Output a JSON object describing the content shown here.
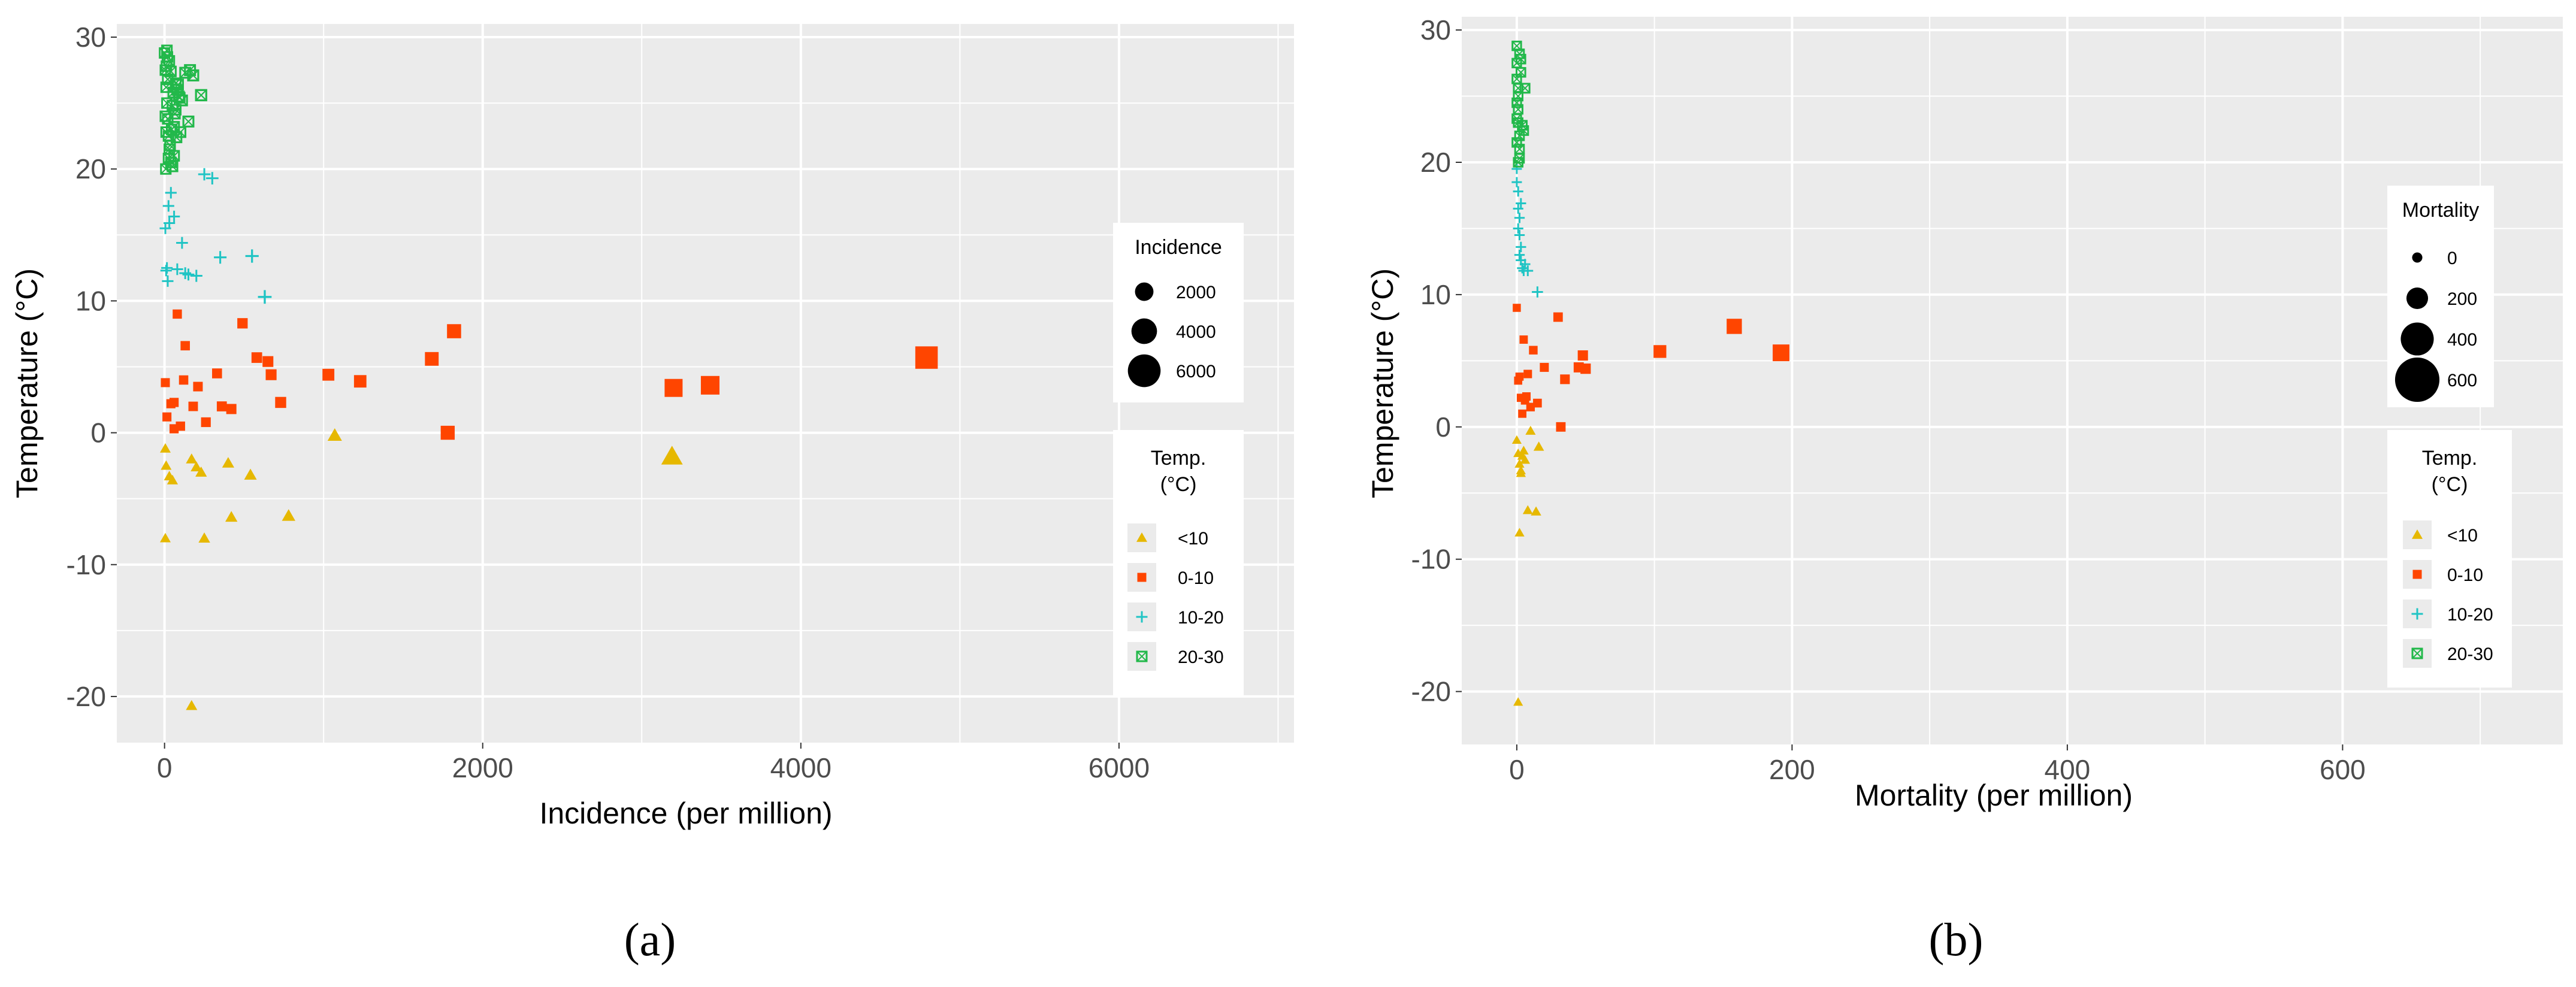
{
  "colors": {
    "panel_bg": "#ebebeb",
    "grid": "#ffffff",
    "lt10": "#E6B800",
    "t0_10": "#FF4500",
    "t10_20": "#20C4C4",
    "t20_30": "#22B84A"
  },
  "panel_labels": {
    "a": "(a)",
    "b": "(b)"
  },
  "chart_data": [
    {
      "type": "scatter",
      "id": "a",
      "title": "",
      "xlabel": "Incidence (per million)",
      "ylabel": "Temperature (°C)",
      "xlim": [
        -300,
        7100
      ],
      "ylim": [
        -23.5,
        31
      ],
      "xticks": [
        0,
        2000,
        4000,
        6000
      ],
      "xtick_labels": [
        "0",
        "2000",
        "4000",
        "6000"
      ],
      "yticks": [
        -20,
        -10,
        0,
        10,
        20,
        30
      ],
      "ytick_labels": [
        "-20",
        "-10",
        "0",
        "10",
        "20",
        "30"
      ],
      "size_legend": {
        "title": "Incidence",
        "entries": [
          {
            "label": "2000",
            "value": 2000
          },
          {
            "label": "4000",
            "value": 4000
          },
          {
            "label": "6000",
            "value": 6000
          }
        ]
      },
      "color_legend": {
        "title_line1": "Temp.",
        "title_line2": "(°C)",
        "entries": [
          {
            "label": "<10",
            "group": "lt10",
            "shape": "triangle"
          },
          {
            "label": "0-10",
            "group": "t0_10",
            "shape": "square"
          },
          {
            "label": "10-20",
            "group": "t10_20",
            "shape": "plus"
          },
          {
            "label": "20-30",
            "group": "t20_30",
            "shape": "squarecross"
          }
        ]
      },
      "series": [
        {
          "name": "<10",
          "group": "lt10",
          "shape": "triangle",
          "x": [
            5,
            10,
            30,
            50,
            170,
            200,
            230,
            250,
            400,
            420,
            540,
            780,
            1070,
            3190,
            170,
            5
          ],
          "y": [
            -1.2,
            -2.5,
            -3.3,
            -3.6,
            -2.0,
            -2.6,
            -3.0,
            -8.0,
            -2.3,
            -6.4,
            -3.2,
            -6.3,
            -0.2,
            -1.8,
            -20.7,
            -8.0
          ]
        },
        {
          "name": "0-10",
          "group": "t0_10",
          "shape": "square",
          "x": [
            5,
            15,
            40,
            60,
            80,
            100,
            130,
            180,
            210,
            260,
            330,
            360,
            420,
            490,
            580,
            650,
            670,
            730,
            1030,
            1230,
            1680,
            1780,
            1820,
            3200,
            3430,
            4790,
            60,
            120
          ],
          "y": [
            3.8,
            1.2,
            2.2,
            0.3,
            9.0,
            0.5,
            6.6,
            2.0,
            3.5,
            0.8,
            4.5,
            2.0,
            1.8,
            8.3,
            5.7,
            5.4,
            4.4,
            2.3,
            4.4,
            3.9,
            5.6,
            0.0,
            7.7,
            3.4,
            3.6,
            5.7,
            2.3,
            4.0
          ]
        },
        {
          "name": "10-20",
          "group": "t10_20",
          "shape": "plus",
          "x": [
            5,
            10,
            20,
            25,
            40,
            60,
            80,
            110,
            130,
            150,
            200,
            250,
            300,
            350,
            550,
            630,
            30,
            15
          ],
          "y": [
            15.5,
            12.3,
            11.5,
            17.2,
            18.2,
            16.4,
            12.4,
            14.4,
            12.1,
            12.0,
            11.9,
            19.6,
            19.3,
            13.3,
            13.4,
            10.3,
            15.9,
            12.5
          ]
        },
        {
          "name": "20-30",
          "group": "t20_30",
          "shape": "squarecross",
          "x": [
            0,
            5,
            10,
            15,
            20,
            25,
            30,
            40,
            50,
            60,
            70,
            80,
            90,
            100,
            110,
            130,
            150,
            160,
            180,
            230,
            5,
            10,
            20,
            30,
            40,
            50,
            60,
            70,
            15,
            25,
            35,
            45,
            55,
            65,
            75,
            85,
            95,
            8,
            12,
            18
          ],
          "y": [
            28.8,
            27.5,
            26.2,
            25.0,
            23.8,
            22.5,
            21.5,
            20.5,
            20.2,
            21.0,
            24.5,
            26.0,
            25.5,
            22.8,
            25.2,
            27.3,
            23.6,
            27.5,
            27.1,
            25.6,
            24.0,
            22.8,
            26.8,
            28.2,
            27.4,
            24.8,
            23.2,
            26.5,
            29.0,
            20.8,
            21.8,
            23.0,
            25.8,
            24.2,
            22.4,
            26.4,
            25.4,
            20.0,
            27.8,
            28.5
          ]
        }
      ]
    },
    {
      "type": "scatter",
      "id": "b",
      "title": "",
      "xlabel": "Mortality (per million)",
      "ylabel": "Temperature (°C)",
      "xlim": [
        -40,
        760
      ],
      "ylim": [
        -24,
        31
      ],
      "xticks": [
        0,
        200,
        400,
        600
      ],
      "xtick_labels": [
        "0",
        "200",
        "400",
        "600"
      ],
      "yticks": [
        -20,
        -10,
        0,
        10,
        20,
        30
      ],
      "ytick_labels": [
        "-20",
        "-10",
        "0",
        "10",
        "20",
        "30"
      ],
      "size_legend": {
        "title": "Mortality",
        "entries": [
          {
            "label": "0",
            "value": 0
          },
          {
            "label": "200",
            "value": 200
          },
          {
            "label": "400",
            "value": 400
          },
          {
            "label": "600",
            "value": 600
          }
        ]
      },
      "color_legend": {
        "title_line1": "Temp.",
        "title_line2": "(°C)",
        "entries": [
          {
            "label": "<10",
            "group": "lt10",
            "shape": "triangle"
          },
          {
            "label": "0-10",
            "group": "t0_10",
            "shape": "square"
          },
          {
            "label": "10-20",
            "group": "t10_20",
            "shape": "plus"
          },
          {
            "label": "20-30",
            "group": "t20_30",
            "shape": "squarecross"
          }
        ]
      },
      "series": [
        {
          "name": "<10",
          "group": "lt10",
          "shape": "triangle",
          "x": [
            0,
            1,
            2,
            3,
            4,
            5,
            6,
            8,
            10,
            14,
            16,
            2,
            1,
            3
          ],
          "y": [
            -1.0,
            -2.0,
            -2.8,
            -3.3,
            -2.2,
            -1.8,
            -2.5,
            -6.3,
            -0.3,
            -6.4,
            -1.5,
            -8.0,
            -20.8,
            -3.5
          ]
        },
        {
          "name": "0-10",
          "group": "t0_10",
          "shape": "square",
          "x": [
            0,
            2,
            3,
            4,
            5,
            6,
            8,
            10,
            12,
            15,
            20,
            30,
            32,
            35,
            45,
            48,
            50,
            104,
            158,
            192,
            1,
            7
          ],
          "y": [
            9.0,
            3.8,
            2.2,
            1.0,
            6.6,
            2.0,
            4.0,
            1.5,
            5.8,
            1.8,
            4.5,
            8.3,
            0.0,
            3.6,
            4.5,
            5.4,
            4.4,
            5.7,
            7.6,
            5.6,
            3.5,
            2.3
          ]
        },
        {
          "name": "10-20",
          "group": "t10_20",
          "shape": "plus",
          "x": [
            0,
            1,
            1,
            2,
            2,
            3,
            3,
            4,
            5,
            6,
            8,
            15,
            0,
            1,
            2,
            3
          ],
          "y": [
            19.5,
            17.8,
            16.5,
            15.8,
            14.5,
            13.6,
            12.6,
            12.0,
            11.8,
            12.3,
            11.8,
            10.2,
            18.5,
            15.0,
            13.0,
            16.9
          ]
        },
        {
          "name": "20-30",
          "group": "t20_30",
          "shape": "squarecross",
          "x": [
            0,
            0,
            0,
            1,
            1,
            1,
            2,
            2,
            2,
            3,
            3,
            4,
            5,
            6,
            0,
            1,
            2,
            0,
            1,
            0
          ],
          "y": [
            28.8,
            27.5,
            26.3,
            25.0,
            24.0,
            23.0,
            22.0,
            21.0,
            20.3,
            27.8,
            26.8,
            22.8,
            22.4,
            25.6,
            24.5,
            20.0,
            28.2,
            21.5,
            25.6,
            23.3
          ]
        }
      ]
    }
  ]
}
